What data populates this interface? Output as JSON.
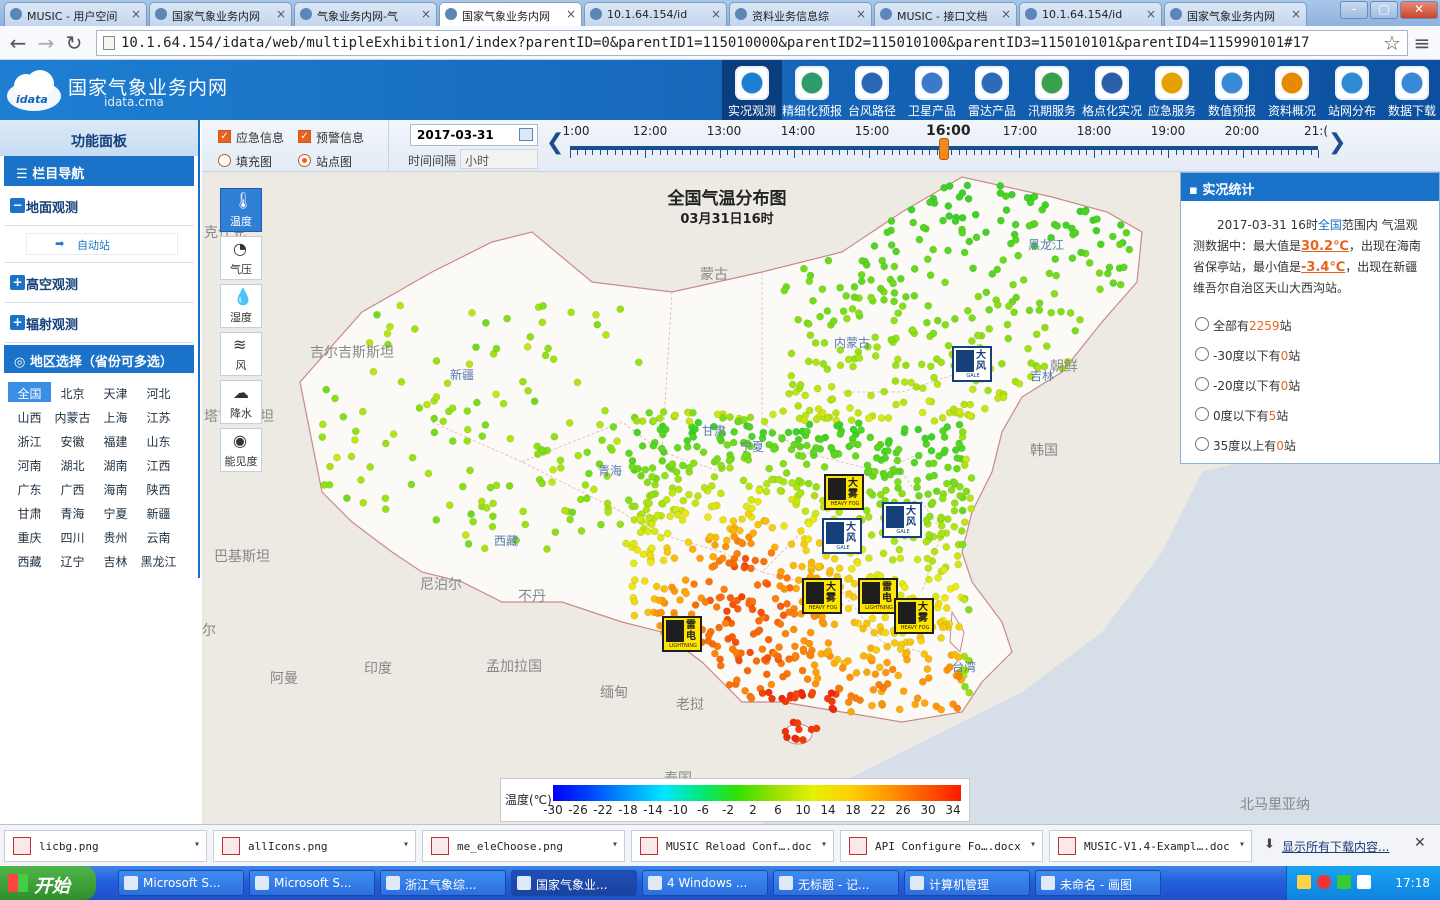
{
  "browser": {
    "tabs": [
      {
        "title": "MUSIC - 用户空间",
        "active": false
      },
      {
        "title": "国家气象业务内网",
        "active": false
      },
      {
        "title": "气象业务内网-气",
        "active": false
      },
      {
        "title": "国家气象业务内网",
        "active": true
      },
      {
        "title": "10.1.64.154/id",
        "active": false
      },
      {
        "title": "资料业务信息综",
        "active": false
      },
      {
        "title": "MUSIC - 接口文档",
        "active": false
      },
      {
        "title": "10.1.64.154/id",
        "active": false
      },
      {
        "title": "国家气象业务内网",
        "active": false
      }
    ],
    "url": "10.1.64.154/idata/web/multipleExhibition1/index?parentID=0&parentID1=115010000&parentID2=115010100&parentID3=115010101&parentID4=115990101#17",
    "window_controls": [
      "-",
      "□",
      "✕"
    ]
  },
  "header": {
    "site_name": "国家气象业务内网",
    "site_sub": "idata.cma",
    "logo_text": "idata",
    "nav": [
      "实况观测",
      "精细化预报",
      "台风路径",
      "卫星产品",
      "雷达产品",
      "汛期服务",
      "格点化实况",
      "应急服务",
      "数值预报",
      "资料概况",
      "站网分布",
      "数据下载"
    ],
    "nav_active": 0
  },
  "sidebar": {
    "title": "功能面板",
    "nav_header": "栏目导航",
    "groups": [
      {
        "label": "地面观测",
        "expanded": true,
        "sub": [
          "自动站"
        ]
      },
      {
        "label": "高空观测",
        "expanded": false
      },
      {
        "label": "辐射观测",
        "expanded": false
      }
    ],
    "region_header": "地区选择（省份可多选）",
    "regions": [
      "全国",
      "北京",
      "天津",
      "河北",
      "山西",
      "内蒙古",
      "上海",
      "江苏",
      "浙江",
      "安徽",
      "福建",
      "山东",
      "河南",
      "湖北",
      "湖南",
      "江西",
      "广东",
      "广西",
      "海南",
      "陕西",
      "甘肃",
      "青海",
      "宁夏",
      "新疆",
      "重庆",
      "四川",
      "贵州",
      "云南",
      "西藏",
      "辽宁",
      "吉林",
      "黑龙江"
    ],
    "region_selected": 0
  },
  "toolbar": {
    "cb_emergency": "应急信息",
    "cb_warning": "预警信息",
    "radio_fill": "填充图",
    "radio_station": "站点图",
    "date": "2017-03-31",
    "interval_label": "时间间隔",
    "interval_value": "小时",
    "timeline_labels": [
      "1:00",
      "12:00",
      "13:00",
      "14:00",
      "15:00",
      "16:00",
      "17:00",
      "18:00",
      "19:00",
      "20:00",
      "21:("
    ],
    "timeline_current": "16:00",
    "timeline_current_fraction": 0.5
  },
  "map": {
    "title": "全国气温分布图",
    "subtitle": "03月31日16时",
    "elements": [
      {
        "label": "温度",
        "icon": "thermometer-icon",
        "glyph": "🌡"
      },
      {
        "label": "气压",
        "icon": "gauge-icon",
        "glyph": "◔"
      },
      {
        "label": "湿度",
        "icon": "droplet-icon",
        "glyph": "💧"
      },
      {
        "label": "风",
        "icon": "wind-icon",
        "glyph": "≋"
      },
      {
        "label": "降水",
        "icon": "rain-cloud-icon",
        "glyph": "☁"
      },
      {
        "label": "能见度",
        "icon": "eye-icon",
        "glyph": "◉"
      }
    ],
    "places": [
      "克什克",
      "蒙古",
      "黑龙江",
      "吉尔吉斯斯坦",
      "新疆",
      "内蒙古",
      "吉林",
      "朝鲜",
      "塔吉克斯坦",
      "甘肃",
      "宁夏",
      "青海",
      "韩国",
      "西藏",
      "巴基斯坦",
      "尼泊尔",
      "不丹",
      "印度",
      "孟加拉国",
      "缅甸",
      "老挝",
      "台湾",
      "阿曼",
      "泰国",
      "北马里亚纳",
      "尔"
    ],
    "legend_title": "温度(℃)",
    "legend_ticks": [
      "-30",
      "-26",
      "-22",
      "-18",
      "-14",
      "-10",
      "-6",
      "-2",
      "2",
      "6",
      "10",
      "14",
      "18",
      "22",
      "26",
      "30",
      "34"
    ],
    "warnings": [
      {
        "text": "大雾",
        "sub": "HEAVY FOG",
        "type": "fog"
      },
      {
        "text": "大风",
        "sub": "GALE",
        "type": "gale"
      },
      {
        "text": "大风",
        "sub": "GALE",
        "type": "gale"
      },
      {
        "text": "大风",
        "sub": "GALE",
        "type": "gale"
      },
      {
        "text": "大雾",
        "sub": "HEAVY FOG",
        "type": "fog"
      },
      {
        "text": "雷电",
        "sub": "LIGHTNING",
        "type": "lightning"
      },
      {
        "text": "大雾",
        "sub": "HEAVY FOG",
        "type": "fog"
      },
      {
        "text": "雷电",
        "sub": "LIGHTNING",
        "type": "lightning"
      }
    ]
  },
  "stats": {
    "header": "实况统计",
    "text_pre": "2017-03-31 16时",
    "text_scope": "全国",
    "text_mid1": "范围内 气温观测数据中：最大值是",
    "max_value": "30.2℃",
    "text_mid2": "，出现在海南省保亭站，最小值是",
    "min_value": "-3.4℃",
    "text_end": "，出现在新疆维吾尔自治区天山大西沟站。",
    "options": [
      {
        "pre": "全部有",
        "num": "2259",
        "post": "站"
      },
      {
        "pre": "-30度以下有",
        "num": "0",
        "post": "站"
      },
      {
        "pre": "-20度以下有",
        "num": "0",
        "post": "站"
      },
      {
        "pre": "0度以下有",
        "num": "5",
        "post": "站"
      },
      {
        "pre": "35度以上有",
        "num": "0",
        "post": "站"
      }
    ]
  },
  "downloads": {
    "items": [
      "licbg.png",
      "allIcons.png",
      "me_eleChoose.png",
      "MUSIC Reload Conf….doc",
      "API Configure Fo….docx",
      "MUSIC-V1.4-Exampl….doc"
    ],
    "show_all": "显示所有下载内容...",
    "close": "✕"
  },
  "taskbar": {
    "start": "开始",
    "tasks": [
      "Microsoft S...",
      "Microsoft S...",
      "浙江气象综...",
      "国家气象业...",
      "4 Windows ...",
      "无标题 - 记...",
      "计算机管理",
      "未命名 - 画图"
    ],
    "active": 3,
    "clock": "17:18"
  },
  "colors": {
    "accent": "#1a72c9",
    "header": "#1563b6",
    "highlight": "#e8641e"
  }
}
